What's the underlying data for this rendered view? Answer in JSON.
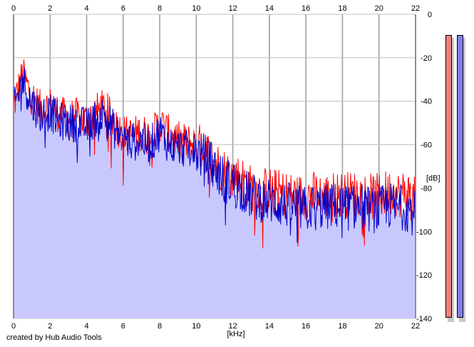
{
  "chart_data": {
    "type": "area",
    "xlabel": "[kHz]",
    "ylabel": "[dB]",
    "xlim": [
      0,
      22
    ],
    "ylim": [
      -140,
      0
    ],
    "x_ticks": [
      "0",
      "2",
      "4",
      "6",
      "8",
      "10",
      "12",
      "14",
      "16",
      "18",
      "20",
      "22"
    ],
    "y_ticks": [
      "0",
      "-20",
      "-40",
      "-60",
      "-80",
      "-100",
      "-120",
      "-140"
    ],
    "grid": true,
    "series": [
      {
        "color": "#ff0000",
        "style": "line",
        "x": [
          0,
          0.5,
          1,
          1.5,
          2,
          2.5,
          3,
          3.5,
          4,
          4.5,
          5,
          5.5,
          6,
          6.5,
          7,
          7.5,
          8,
          8.5,
          9,
          9.5,
          10,
          10.5,
          11,
          11.5,
          12,
          12.5,
          13,
          13.5,
          14,
          14.5,
          15,
          15.5,
          16,
          16.5,
          17,
          17.5,
          18,
          18.5,
          19,
          19.5,
          20,
          20.5,
          21,
          21.5,
          22
        ],
        "values": [
          -42,
          -28,
          -38,
          -44,
          -42,
          -46,
          -48,
          -47,
          -49,
          -45,
          -43,
          -50,
          -55,
          -56,
          -54,
          -57,
          -50,
          -55,
          -58,
          -59,
          -60,
          -63,
          -68,
          -72,
          -74,
          -76,
          -80,
          -81,
          -81,
          -82,
          -83,
          -84,
          -84,
          -83,
          -84,
          -83,
          -83,
          -83,
          -82,
          -84,
          -84,
          -82,
          -83,
          -82,
          -86
        ]
      },
      {
        "color": "#0000cc",
        "style": "line",
        "x": [
          0,
          0.5,
          1,
          1.5,
          2,
          2.5,
          3,
          3.5,
          4,
          4.5,
          5,
          5.5,
          6,
          6.5,
          7,
          7.5,
          8,
          8.5,
          9,
          9.5,
          10,
          10.5,
          11,
          11.5,
          12,
          12.5,
          13,
          13.5,
          14,
          14.5,
          15,
          15.5,
          16,
          16.5,
          17,
          17.5,
          18,
          18.5,
          19,
          19.5,
          20,
          20.5,
          21,
          21.5,
          22
        ],
        "values": [
          -44,
          -30,
          -41,
          -46,
          -45,
          -49,
          -50,
          -50,
          -52,
          -48,
          -46,
          -53,
          -57,
          -59,
          -58,
          -60,
          -54,
          -60,
          -61,
          -62,
          -63,
          -66,
          -71,
          -76,
          -78,
          -80,
          -84,
          -85,
          -86,
          -87,
          -88,
          -89,
          -90,
          -88,
          -89,
          -88,
          -89,
          -89,
          -88,
          -90,
          -90,
          -88,
          -89,
          -89,
          -92
        ]
      }
    ],
    "fill_color": "#c8c8ff"
  },
  "level_meters": [
    {
      "color": "#f08080"
    },
    {
      "color": "#8080f0"
    }
  ],
  "footer": {
    "credit": "created by Hub Audio Tools"
  }
}
